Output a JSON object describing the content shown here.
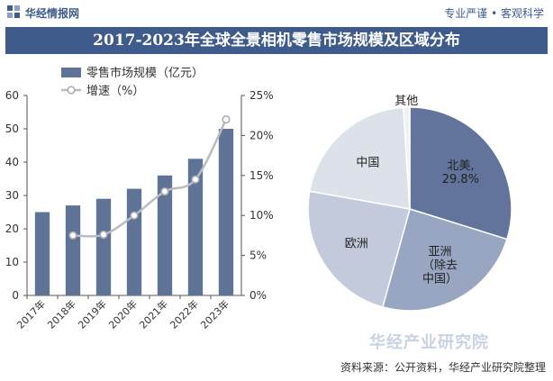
{
  "header": {
    "brand": "华经情报网",
    "slogan": "专业严谨 • 客观科学"
  },
  "title": "2017-2023年全球全景相机零售市场规模及区域分布",
  "watermark": "华经产业研究院",
  "footer": "资料来源：公开资料，华经产业研究院整理",
  "colors": {
    "bar": "#5f7397",
    "line": "#b9bcc4",
    "title_bg": "#3f5b8c",
    "pie": [
      "#62749b",
      "#98a6c2",
      "#c3cadb",
      "#dde1ea",
      "#f0f1f4"
    ]
  },
  "chart_data": [
    {
      "type": "bar",
      "categories": [
        "2017年",
        "2018年",
        "2019年",
        "2020年",
        "2021年",
        "2022年",
        "2023年"
      ],
      "series": [
        {
          "name": "零售市场规模（亿元）",
          "type": "bar",
          "axis": "left",
          "values": [
            25,
            27,
            29,
            32,
            36,
            41,
            50
          ]
        },
        {
          "name": "增速（%）",
          "type": "line",
          "axis": "right",
          "values": [
            null,
            7.5,
            7.6,
            10.0,
            13.0,
            14.5,
            22.0
          ]
        }
      ],
      "y_left": {
        "ylim": [
          0,
          60
        ],
        "ticks": [
          "0",
          "10",
          "20",
          "30",
          "40",
          "50",
          "60"
        ]
      },
      "y_right": {
        "ylim": [
          0,
          25
        ],
        "ticks": [
          "0%",
          "5%",
          "10%",
          "15%",
          "20%",
          "25%"
        ]
      },
      "legend": "top-left"
    },
    {
      "type": "pie",
      "slices": [
        {
          "label": "北美,",
          "value_label": "29.8%",
          "value": 29.8
        },
        {
          "label": "亚洲（除去中国）",
          "label_lines": [
            "亚洲",
            "（除去",
            "中国）"
          ],
          "value": 24.5
        },
        {
          "label": "欧洲",
          "value": 23.5
        },
        {
          "label": "中国",
          "value": 21.2
        },
        {
          "label": "其他",
          "value": 1.0
        }
      ]
    }
  ]
}
